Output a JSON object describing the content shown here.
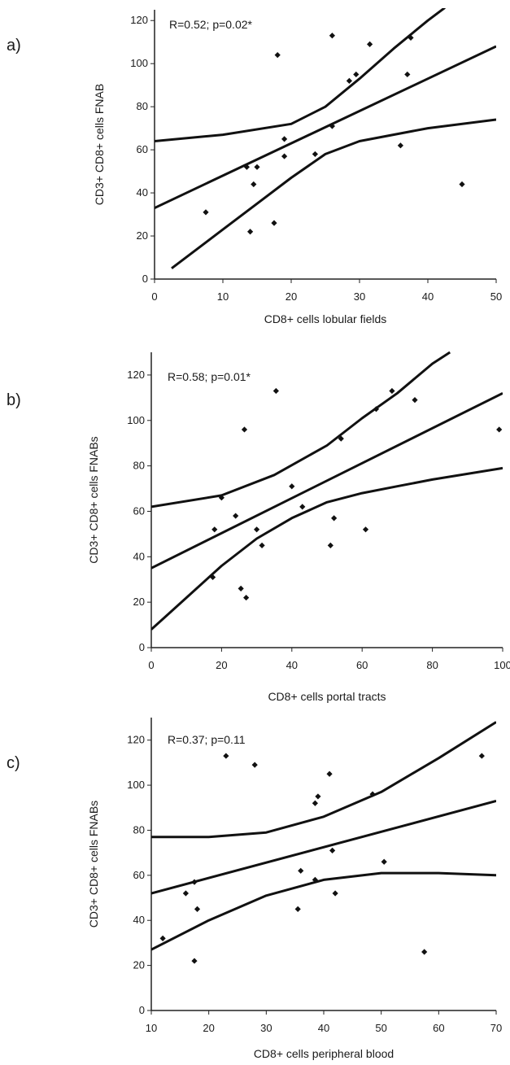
{
  "chart_data": [
    {
      "panel_label": "a)",
      "type": "scatter",
      "xlabel": "CD8+ cells lobular fields",
      "ylabel": "CD3+ CD8+ cells FNAB",
      "annotation": "R=0.52; p=0.02*",
      "xlim": [
        0,
        50
      ],
      "ylim": [
        0,
        125
      ],
      "xticks": [
        0,
        10,
        20,
        30,
        40,
        50
      ],
      "yticks": [
        0,
        20,
        40,
        60,
        80,
        100,
        120
      ],
      "grid": false,
      "points": [
        [
          7.5,
          31
        ],
        [
          13.5,
          52
        ],
        [
          14,
          22
        ],
        [
          14.5,
          44
        ],
        [
          15,
          52
        ],
        [
          17.5,
          26
        ],
        [
          18,
          104
        ],
        [
          19,
          57
        ],
        [
          19,
          65
        ],
        [
          23.5,
          58
        ],
        [
          26,
          113
        ],
        [
          26,
          71
        ],
        [
          28.5,
          92
        ],
        [
          29.5,
          95
        ],
        [
          31.5,
          109
        ],
        [
          36,
          62
        ],
        [
          37,
          95
        ],
        [
          37.5,
          112
        ],
        [
          45,
          44
        ]
      ],
      "regression_line": [
        [
          0,
          33
        ],
        [
          50,
          108
        ]
      ],
      "ci_upper": [
        [
          0,
          64
        ],
        [
          10,
          67
        ],
        [
          20,
          72
        ],
        [
          25,
          80
        ],
        [
          30,
          93
        ],
        [
          35,
          107
        ],
        [
          40,
          120
        ],
        [
          42.5,
          126
        ]
      ],
      "ci_lower": [
        [
          2.5,
          5
        ],
        [
          10,
          23
        ],
        [
          15,
          35
        ],
        [
          20,
          47
        ],
        [
          25,
          58
        ],
        [
          30,
          64
        ],
        [
          40,
          70
        ],
        [
          50,
          74
        ]
      ]
    },
    {
      "panel_label": "b)",
      "type": "scatter",
      "xlabel": "CD8+ cells portal tracts",
      "ylabel": "CD3+ CD8+ cells FNABs",
      "annotation": "R=0.58; p=0.01*",
      "xlim": [
        0,
        100
      ],
      "ylim": [
        0,
        130
      ],
      "xticks": [
        0,
        20,
        40,
        60,
        80,
        100
      ],
      "yticks": [
        0,
        20,
        40,
        60,
        80,
        100,
        120
      ],
      "grid": false,
      "points": [
        [
          17.5,
          31
        ],
        [
          18,
          52
        ],
        [
          20,
          66
        ],
        [
          24,
          58
        ],
        [
          25.5,
          26
        ],
        [
          26.5,
          96
        ],
        [
          27,
          22
        ],
        [
          30,
          52
        ],
        [
          31.5,
          45
        ],
        [
          35.5,
          113
        ],
        [
          40,
          71
        ],
        [
          43,
          62
        ],
        [
          51,
          45
        ],
        [
          52,
          57
        ],
        [
          54,
          92
        ],
        [
          61,
          52
        ],
        [
          64,
          105
        ],
        [
          68.5,
          113
        ],
        [
          75,
          109
        ],
        [
          99,
          96
        ]
      ],
      "regression_line": [
        [
          0,
          35
        ],
        [
          100,
          112
        ]
      ],
      "ci_upper": [
        [
          0,
          62
        ],
        [
          20,
          67
        ],
        [
          35,
          76
        ],
        [
          50,
          89
        ],
        [
          60,
          101
        ],
        [
          70,
          112
        ],
        [
          80,
          125
        ],
        [
          85,
          130
        ]
      ],
      "ci_lower": [
        [
          0,
          8
        ],
        [
          10,
          22
        ],
        [
          20,
          36
        ],
        [
          30,
          48
        ],
        [
          40,
          57
        ],
        [
          50,
          64
        ],
        [
          60,
          68
        ],
        [
          70,
          71
        ],
        [
          80,
          74
        ],
        [
          100,
          79
        ]
      ]
    },
    {
      "panel_label": "c)",
      "type": "scatter",
      "xlabel": "CD8+ cells peripheral blood",
      "ylabel": "CD3+ CD8+ cells FNABs",
      "annotation": "R=0.37; p=0.11",
      "xlim": [
        10,
        70
      ],
      "ylim": [
        0,
        130
      ],
      "xticks": [
        10,
        20,
        30,
        40,
        50,
        60,
        70
      ],
      "yticks": [
        0,
        20,
        40,
        60,
        80,
        100,
        120
      ],
      "grid": false,
      "points": [
        [
          12,
          32
        ],
        [
          16,
          52
        ],
        [
          17.5,
          57
        ],
        [
          17.5,
          22
        ],
        [
          18,
          45
        ],
        [
          23,
          113
        ],
        [
          28,
          109
        ],
        [
          35.5,
          45
        ],
        [
          36,
          62
        ],
        [
          38.5,
          58
        ],
        [
          38.5,
          92
        ],
        [
          39,
          95
        ],
        [
          41,
          105
        ],
        [
          41.5,
          71
        ],
        [
          42,
          52
        ],
        [
          48.5,
          96
        ],
        [
          50.5,
          66
        ],
        [
          57.5,
          26
        ],
        [
          67.5,
          113
        ]
      ],
      "regression_line": [
        [
          10,
          52
        ],
        [
          70,
          93
        ]
      ],
      "ci_upper": [
        [
          10,
          77
        ],
        [
          20,
          77
        ],
        [
          30,
          79
        ],
        [
          40,
          86
        ],
        [
          50,
          97
        ],
        [
          60,
          112
        ],
        [
          70,
          128
        ]
      ],
      "ci_lower": [
        [
          10,
          27
        ],
        [
          20,
          40
        ],
        [
          30,
          51
        ],
        [
          40,
          58
        ],
        [
          50,
          61
        ],
        [
          60,
          61
        ],
        [
          70,
          60
        ]
      ]
    }
  ]
}
